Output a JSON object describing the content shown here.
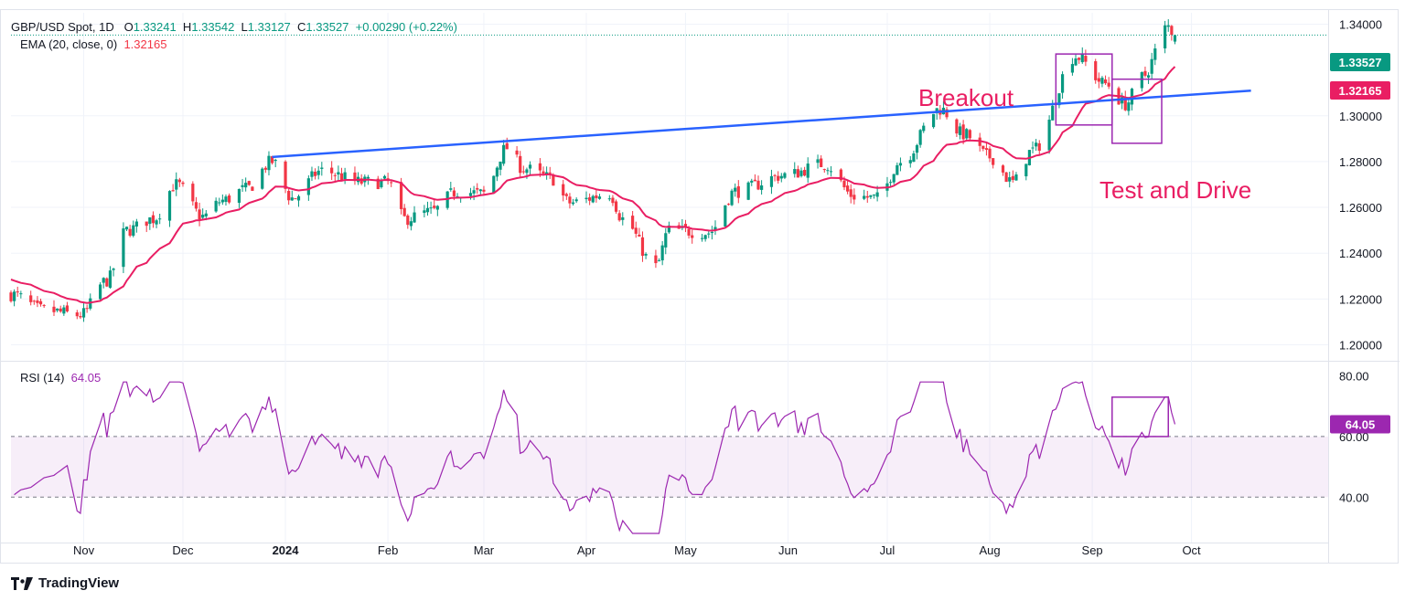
{
  "header": {
    "symbol": "GBP/USD Spot, 1D",
    "open_label": "O",
    "open": "1.33241",
    "high_label": "H",
    "high": "1.33542",
    "low_label": "L",
    "low": "1.33127",
    "close_label": "C",
    "close": "1.33527",
    "change": "+0.00290 (+0.22%)",
    "ema_label": "EMA (20, close, 0)",
    "ema_value": "1.32165",
    "rsi_label": "RSI (14)",
    "rsi_value": "64.05"
  },
  "annotations": {
    "breakout": "Breakout",
    "test_and_drive": "Test and Drive"
  },
  "branding": {
    "name": "TradingView"
  },
  "colors": {
    "up": "#089981",
    "down": "#f23645",
    "ema": "#e91e63",
    "trendline": "#2962ff",
    "rsi": "#9c27b0",
    "annotation": "#e91e63",
    "box": "#9c27b0"
  },
  "chart_data": [
    {
      "type": "candlestick",
      "title": "",
      "x_ticks": [
        "Nov",
        "Dec",
        "2024",
        "Feb",
        "Mar",
        "Apr",
        "May",
        "Jun",
        "Jul",
        "Aug",
        "Sep",
        "Oct"
      ],
      "y_ticks": [
        "1.20000",
        "1.22000",
        "1.24000",
        "1.26000",
        "1.28000",
        "1.30000",
        "1.34000"
      ],
      "ylim": [
        1.193,
        1.345
      ],
      "last_price": "1.33527",
      "ema_last": "1.32165",
      "key_closes": {
        "late_oct_2023": 1.213,
        "dec_28_2023": 1.28,
        "mar_8_2024": 1.286,
        "apr_22_2024": 1.234,
        "jul_17_2024": 1.303,
        "aug_8_2024": 1.271,
        "aug_27_2024": 1.326,
        "sep_11_2024": 1.305,
        "sep_24_2024": 1.339,
        "sep_26_2024": 1.335
      },
      "trendline": {
        "from": [
          "2023-12-28",
          1.282
        ],
        "to": [
          "2024-10-19",
          1.311
        ]
      },
      "annotation_boxes": [
        {
          "label": "Breakout",
          "x": [
            "2024-08-21",
            "2024-09-07"
          ],
          "y": [
            1.296,
            1.327
          ]
        },
        {
          "label": "Test and Drive",
          "x": [
            "2024-09-07",
            "2024-09-22"
          ],
          "y": [
            1.288,
            1.316
          ]
        }
      ]
    },
    {
      "type": "line",
      "title": "",
      "y_ticks": [
        "80.00",
        "60.00",
        "40.00"
      ],
      "ylim": [
        25,
        85
      ],
      "band": [
        40,
        60
      ],
      "last_value": "64.05",
      "annotation_box": {
        "x": [
          "2024-09-07",
          "2024-09-24"
        ],
        "y": [
          60,
          73
        ]
      }
    }
  ]
}
